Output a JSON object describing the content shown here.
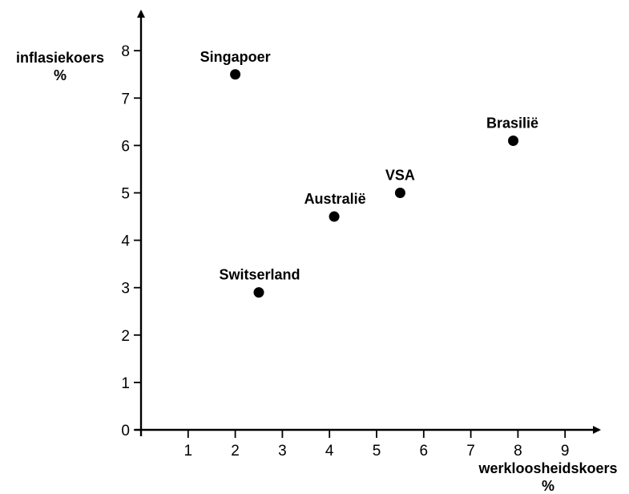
{
  "chart_data": {
    "type": "scatter",
    "xlabel": [
      "werkloosheidskoers",
      "%"
    ],
    "ylabel": [
      "inflasiekoers",
      "%"
    ],
    "xlim": [
      0,
      9.5
    ],
    "ylim": [
      0,
      8.7
    ],
    "x_ticks": [
      1,
      2,
      3,
      4,
      5,
      6,
      7,
      8,
      9
    ],
    "y_ticks": [
      0,
      1,
      2,
      3,
      4,
      5,
      6,
      7,
      8
    ],
    "grid": false,
    "legend": "none",
    "points": [
      {
        "label": "Singapoer",
        "x": 2.0,
        "y": 7.5
      },
      {
        "label": "Brasilië",
        "x": 7.9,
        "y": 6.1
      },
      {
        "label": "VSA",
        "x": 5.5,
        "y": 5.0
      },
      {
        "label": "Australië",
        "x": 4.1,
        "y": 4.5
      },
      {
        "label": "Switserland",
        "x": 2.5,
        "y": 2.9
      }
    ]
  }
}
